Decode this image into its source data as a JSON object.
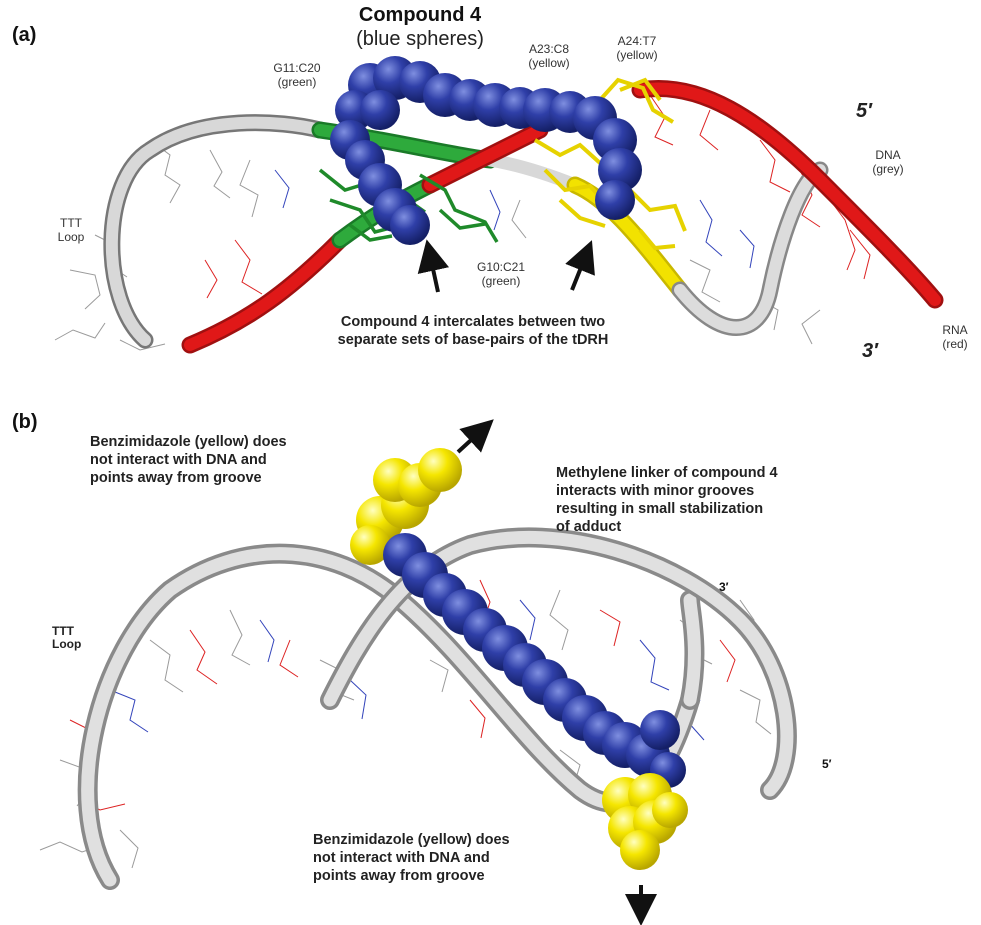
{
  "panel_a": {
    "panel_label": "(a)",
    "compound_title": "Compound 4",
    "compound_subtitle": "(blue spheres)",
    "labels": {
      "g11_c20": "G11:C20",
      "g11_c20_color": "(green)",
      "a23_c8": "A23:C8",
      "a23_c8_color": "(yellow)",
      "a24_t7": "A24:T7",
      "a24_t7_color": "(yellow)",
      "five_prime": "5′",
      "dna": "DNA",
      "dna_color": "(grey)",
      "ttt": "TTT",
      "loop": "Loop",
      "g10_c21": "G10:C21",
      "g10_c21_color": "(green)",
      "rna": "RNA",
      "rna_color": "(red)",
      "three_prime": "3′"
    },
    "caption_line1": "Compound 4 intercalates between two",
    "caption_line2": "separate sets of base-pairs of the tDRH"
  },
  "panel_b": {
    "panel_label": "(b)",
    "note_top_left": [
      "Benzimidazole (yellow) does",
      "not interact with DNA and",
      "points away from groove"
    ],
    "note_top_right": [
      "Methylene linker of compound 4",
      "interacts with minor grooves",
      "resulting in small stabilization",
      "of adduct"
    ],
    "note_bottom": [
      "Benzimidazole (yellow) does",
      "not interact with DNA and",
      "points away from groove"
    ],
    "ttt": "TTT",
    "loop": "Loop",
    "three_prime": "3′",
    "five_prime": "5′"
  },
  "colors": {
    "dna_grey": "#c8c8c8",
    "rna_red": "#e01818",
    "basepair_green": "#22a032",
    "basepair_yellow": "#f2e200",
    "compound_blue": "#2a3a9a",
    "benzimidazole_yellow": "#f2e200"
  }
}
